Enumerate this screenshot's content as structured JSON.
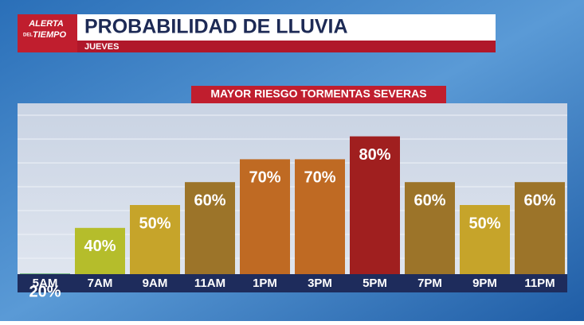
{
  "chart_data": {
    "type": "bar",
    "title": "PROBABILIDAD DE LLUVIA",
    "subtitle": "JUEVES",
    "logo": [
      "ALERTA",
      "DEL",
      "TIEMPO"
    ],
    "annotation": "MAYOR RIESGO TORMENTAS SEVERAS",
    "categories": [
      "5AM",
      "7AM",
      "9AM",
      "11AM",
      "1PM",
      "3PM",
      "5PM",
      "7PM",
      "9PM",
      "11PM"
    ],
    "values": [
      20,
      40,
      50,
      60,
      70,
      70,
      80,
      60,
      50,
      60
    ],
    "value_labels": [
      "20%",
      "40%",
      "50%",
      "60%",
      "70%",
      "70%",
      "80%",
      "60%",
      "50%",
      "60%"
    ],
    "colors": [
      "#2e9d3b",
      "#b5bd2b",
      "#c6a42a",
      "#9c7429",
      "#bf6a23",
      "#bf6a23",
      "#a01f1f",
      "#9c7429",
      "#c6a42a",
      "#9c7429"
    ],
    "ylim": [
      0,
      100
    ]
  }
}
